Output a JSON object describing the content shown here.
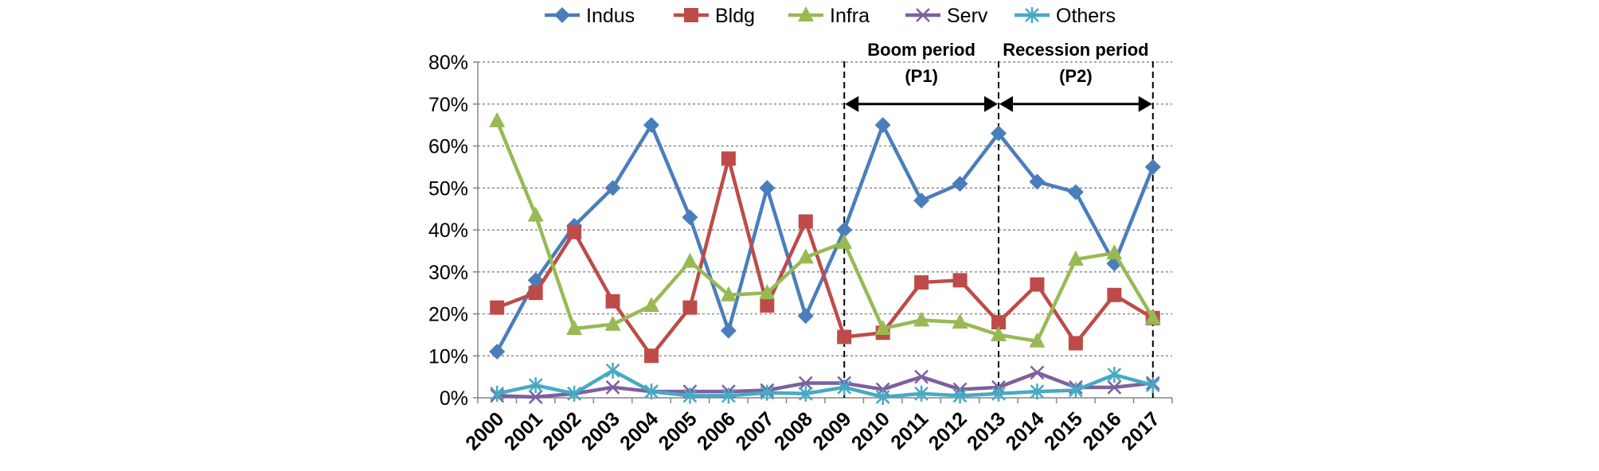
{
  "chart_data": {
    "type": "line",
    "x": [
      "2000",
      "2001",
      "2002",
      "2003",
      "2004",
      "2005",
      "2006",
      "2007",
      "2008",
      "2009",
      "2010",
      "2011",
      "2012",
      "2013",
      "2014",
      "2015",
      "2016",
      "2017"
    ],
    "ylim": [
      0,
      80
    ],
    "yticks": [
      "0%",
      "10%",
      "20%",
      "30%",
      "40%",
      "50%",
      "60%",
      "70%",
      "80%"
    ],
    "grid": true,
    "legend_position": "top-center",
    "series": [
      {
        "name": "Indus",
        "color": "#4a7ebb",
        "marker": "diamond",
        "values": [
          11,
          28,
          41,
          50,
          65,
          43,
          16,
          50,
          19.5,
          40,
          65,
          47,
          51,
          63,
          51.5,
          49,
          32,
          55
        ]
      },
      {
        "name": "Bldg",
        "color": "#be4b48",
        "marker": "square",
        "values": [
          21.5,
          25,
          39.5,
          23,
          10,
          21.5,
          57,
          22,
          42,
          14.5,
          15.5,
          27.5,
          28,
          18,
          27,
          13,
          24.5,
          19
        ]
      },
      {
        "name": "Infra",
        "color": "#98b954",
        "marker": "triangle",
        "values": [
          66,
          43.5,
          16.5,
          17.5,
          22,
          32.5,
          24.5,
          25,
          33.5,
          37,
          16.5,
          18.5,
          18,
          15,
          13.5,
          33,
          34.5,
          19
        ]
      },
      {
        "name": "Serv",
        "color": "#7d60a0",
        "marker": "x",
        "values": [
          0.5,
          0.2,
          1,
          2.5,
          1.5,
          1.5,
          1.5,
          1.8,
          3.5,
          3.5,
          2,
          5,
          2,
          2.5,
          6,
          2.5,
          2.5,
          3.5
        ]
      },
      {
        "name": "Others",
        "color": "#46aac4",
        "marker": "star",
        "values": [
          1,
          3,
          1,
          6.5,
          1.5,
          0.5,
          0.5,
          1.2,
          1,
          2.5,
          0.2,
          1,
          0.5,
          1,
          1.5,
          1.8,
          5.5,
          3
        ]
      }
    ],
    "annotations": [
      {
        "label1": "Boom period",
        "label2": "(P1)",
        "from": "2009",
        "to": "2013"
      },
      {
        "label1": "Recession period",
        "label2": "(P2)",
        "from": "2013",
        "to": "2017"
      }
    ]
  }
}
